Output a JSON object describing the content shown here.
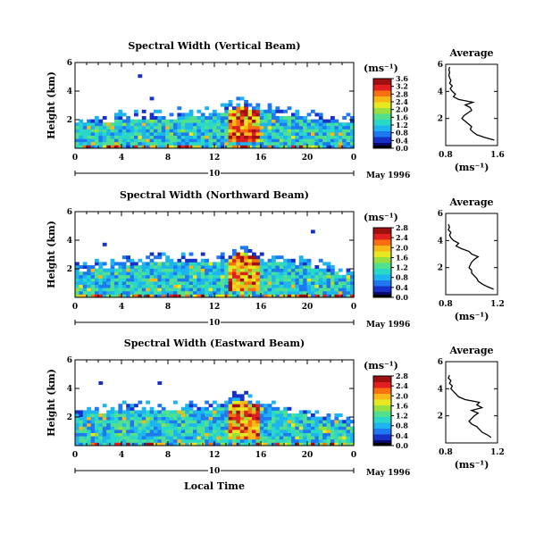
{
  "figure": {
    "xlabel": "Local Time",
    "date_label": "May 1996",
    "day_label": "10",
    "units": "(ms⁻¹)",
    "profile_title": "Average"
  },
  "colormap": [
    "#0a0a6e",
    "#1630c8",
    "#1e78f0",
    "#1eb4f0",
    "#2ad8c8",
    "#50e090",
    "#98e040",
    "#e8e820",
    "#f8b818",
    "#f87010",
    "#e02020",
    "#a01010"
  ],
  "chart_data": [
    {
      "type": "heatmap",
      "title": "Spectral Width (Vertical Beam)",
      "xlabel": "Local Time",
      "ylabel": "Height (km)",
      "xlim": [
        0,
        24
      ],
      "ylim": [
        0,
        6
      ],
      "x_ticks": [
        "0",
        "4",
        "8",
        "12",
        "16",
        "20",
        "0"
      ],
      "y_ticks": [
        "2",
        "4",
        "6"
      ],
      "colorbar_label": "(ms⁻¹)",
      "colorbar_ticks": [
        "0.0",
        "0.4",
        "0.8",
        "1.2",
        "1.6",
        "2.0",
        "2.4",
        "2.8",
        "3.2",
        "3.6"
      ],
      "colorbar_range": [
        0.0,
        3.6
      ],
      "echo_top_km": [
        2.3,
        2.4,
        2.4,
        2.5,
        2.6,
        2.6,
        2.6,
        2.6,
        2.7,
        2.8,
        2.8,
        2.9,
        3.0,
        3.2,
        3.6,
        3.4,
        3.2,
        3.0,
        2.9,
        2.9,
        2.7,
        2.5,
        2.4,
        2.3,
        2.4
      ],
      "profile": {
        "title": "Average",
        "xlabel": "(ms⁻¹)",
        "ylabel": "Height (km)",
        "x_ticks": [
          "0.8",
          "1.6"
        ],
        "xlim": [
          0.8,
          1.6
        ],
        "ylim": [
          0,
          6
        ],
        "y_ticks": [
          "2",
          "4",
          "6"
        ],
        "height_km": [
          0.4,
          0.6,
          0.8,
          1.0,
          1.2,
          1.4,
          1.6,
          1.8,
          2.0,
          2.2,
          2.4,
          2.6,
          2.8,
          3.0,
          3.2,
          3.4,
          3.6,
          3.8,
          4.0,
          4.2,
          4.4,
          4.6,
          4.8,
          5.0,
          5.2,
          5.4,
          5.6,
          5.8
        ],
        "values": [
          1.55,
          1.4,
          1.28,
          1.22,
          1.18,
          1.2,
          1.15,
          1.1,
          1.05,
          1.08,
          1.14,
          1.2,
          1.18,
          1.1,
          1.22,
          1.0,
          0.92,
          0.95,
          0.9,
          0.87,
          0.9,
          0.86,
          0.88,
          0.86,
          0.85,
          0.86,
          0.85,
          0.86
        ]
      }
    },
    {
      "type": "heatmap",
      "title": "Spectral Width (Northward Beam)",
      "xlabel": "Local Time",
      "ylabel": "Height (km)",
      "xlim": [
        0,
        24
      ],
      "ylim": [
        0,
        6
      ],
      "x_ticks": [
        "0",
        "4",
        "8",
        "12",
        "16",
        "20",
        "0"
      ],
      "y_ticks": [
        "2",
        "4",
        "6"
      ],
      "colorbar_label": "(ms⁻¹)",
      "colorbar_ticks": [
        "0.0",
        "0.4",
        "0.8",
        "1.2",
        "1.6",
        "2.0",
        "2.4",
        "2.8"
      ],
      "colorbar_range": [
        0.0,
        2.8
      ],
      "echo_top_km": [
        2.5,
        2.5,
        2.6,
        2.7,
        2.8,
        2.9,
        3.0,
        3.0,
        3.0,
        3.0,
        3.1,
        3.0,
        3.0,
        3.2,
        3.9,
        3.5,
        3.2,
        3.0,
        3.0,
        2.9,
        2.8,
        2.6,
        2.4,
        2.2,
        2.0
      ],
      "profile": {
        "title": "Average",
        "xlabel": "(ms⁻¹)",
        "ylabel": "Height (km)",
        "x_ticks": [
          "0.8",
          "1.2"
        ],
        "xlim": [
          0.8,
          1.2
        ],
        "ylim": [
          0,
          6
        ],
        "y_ticks": [
          "2",
          "4",
          "6"
        ],
        "height_km": [
          0.4,
          0.6,
          0.8,
          1.0,
          1.2,
          1.4,
          1.6,
          1.8,
          2.0,
          2.2,
          2.4,
          2.6,
          2.8,
          3.0,
          3.2,
          3.4,
          3.6,
          3.8,
          4.0,
          4.2,
          4.4,
          4.6,
          4.8,
          5.0,
          5.2
        ],
        "values": [
          1.17,
          1.12,
          1.08,
          1.05,
          1.04,
          1.02,
          1.0,
          1.0,
          0.98,
          0.99,
          1.0,
          1.02,
          1.05,
          1.0,
          0.98,
          0.92,
          0.88,
          0.9,
          0.86,
          0.84,
          0.83,
          0.84,
          0.82,
          0.83,
          0.82
        ]
      }
    },
    {
      "type": "heatmap",
      "title": "Spectral Width (Eastward Beam)",
      "xlabel": "Local Time",
      "ylabel": "Height (km)",
      "xlim": [
        0,
        24
      ],
      "ylim": [
        0,
        6
      ],
      "x_ticks": [
        "0",
        "4",
        "8",
        "12",
        "16",
        "20",
        "0"
      ],
      "y_ticks": [
        "2",
        "4",
        "6"
      ],
      "colorbar_label": "(ms⁻¹)",
      "colorbar_ticks": [
        "0.0",
        "0.4",
        "0.8",
        "1.2",
        "1.6",
        "2.0",
        "2.4",
        "2.8"
      ],
      "colorbar_range": [
        0.0,
        2.8
      ],
      "echo_top_km": [
        2.7,
        2.8,
        2.9,
        3.0,
        3.0,
        3.0,
        3.0,
        3.0,
        3.0,
        3.0,
        3.1,
        3.1,
        3.2,
        3.5,
        3.9,
        3.6,
        3.3,
        3.1,
        3.0,
        2.9,
        2.7,
        2.5,
        2.4,
        2.2,
        2.0
      ],
      "profile": {
        "title": "Average",
        "xlabel": "(ms⁻¹)",
        "ylabel": "Height (km)",
        "x_ticks": [
          "0.8",
          "1.2"
        ],
        "xlim": [
          0.8,
          1.2
        ],
        "ylim": [
          0,
          6
        ],
        "y_ticks": [
          "2",
          "4",
          "6"
        ],
        "height_km": [
          0.4,
          0.6,
          0.8,
          1.0,
          1.2,
          1.4,
          1.6,
          1.8,
          2.0,
          2.2,
          2.4,
          2.6,
          2.8,
          3.0,
          3.2,
          3.4,
          3.6,
          3.8,
          4.0,
          4.2,
          4.4,
          4.6,
          4.8,
          5.0
        ],
        "values": [
          1.15,
          1.12,
          1.08,
          1.06,
          1.04,
          1.0,
          0.98,
          1.0,
          1.02,
          1.05,
          1.0,
          1.08,
          1.04,
          1.06,
          0.95,
          0.9,
          0.88,
          0.86,
          0.84,
          0.85,
          0.83,
          0.84,
          0.82,
          0.83
        ]
      }
    }
  ]
}
